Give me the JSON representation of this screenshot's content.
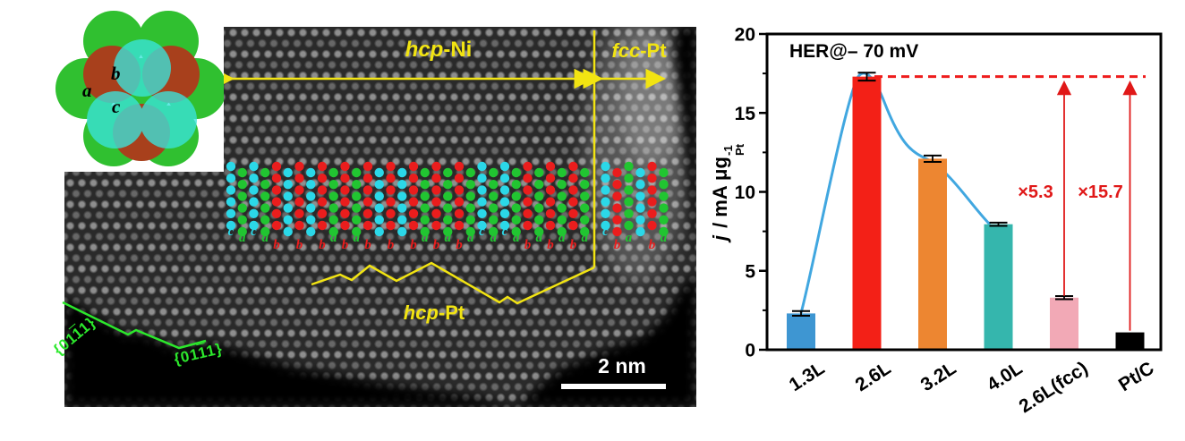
{
  "micrograph": {
    "regions": {
      "left": {
        "italic": "hcp",
        "rest": "-Ni"
      },
      "right": {
        "italic": "fcc",
        "rest": "-Pt"
      },
      "bottom": {
        "italic": "hcp",
        "rest": "-Pt"
      }
    },
    "facets": [
      {
        "pre": "{01",
        "bar": "1",
        "post": "1}"
      },
      {
        "pre": "{01",
        "bar": "1",
        "post": "1}"
      }
    ],
    "scale_bar": "2 nm",
    "annotation_colors": {
      "yellow": "#f2e412",
      "green": "#2ce82c"
    },
    "inset": {
      "site_labels": {
        "a": "a",
        "b": "b",
        "c": "c"
      },
      "layer_colors": {
        "a": "#30c030",
        "b": "#a8401c",
        "c": "#3ae4dc"
      }
    },
    "stacking": {
      "hcp": [
        "c",
        "a",
        "c",
        "a",
        "b",
        "c",
        "b",
        "c",
        "b",
        "a",
        "b",
        "a",
        "b",
        "c",
        "b",
        "c",
        "b",
        "a",
        "b",
        "a",
        "b",
        "a",
        "c",
        "a",
        "c",
        "a",
        "b",
        "a",
        "b",
        "a",
        "b",
        "a"
      ],
      "fcc": [
        "c",
        "b",
        "a",
        "c",
        "b",
        "a"
      ],
      "colors": {
        "a": "#21c531",
        "b": "#ea1d1d",
        "c": "#2bd8e8"
      }
    }
  },
  "chart": {
    "title": "HER@– 70 mV",
    "ylabel": {
      "italic": "j",
      "main": " / mA μg",
      "sub": "Pt",
      "sup": "-1"
    }
  },
  "chart_data": {
    "type": "bar",
    "title": "HER@– 70 mV",
    "ylabel": "j / mA μg_Pt^-1",
    "categories": [
      "1.3L",
      "2.6L",
      "3.2L",
      "4.0L",
      "2.6L(fcc)",
      "Pt/C"
    ],
    "values": [
      2.3,
      17.3,
      12.1,
      7.95,
      3.3,
      1.1
    ],
    "errors": [
      0.15,
      0.25,
      0.2,
      0.1,
      0.1,
      0
    ],
    "bar_colors": [
      "#3e96d2",
      "#f32017",
      "#ed8631",
      "#35b6ad",
      "#f2a9b6",
      "#000000"
    ],
    "ylim": [
      0,
      20
    ],
    "yticks": [
      0,
      5,
      10,
      15,
      20
    ],
    "minor_yticks": [
      2.5,
      7.5,
      12.5,
      17.5
    ],
    "grid": false,
    "legend": "none",
    "trend_curve": {
      "through": [
        "1.3L",
        "2.6L",
        "3.2L",
        "4.0L"
      ],
      "color": "#41a7e0"
    },
    "reference_line": {
      "y": 17.3,
      "style": "dashed",
      "color": "#ee1c1c"
    },
    "annotations": [
      {
        "label": "×5.3",
        "at": "2.6L(fcc)",
        "color": "#e01818"
      },
      {
        "label": "×15.7",
        "at": "Pt/C",
        "color": "#e01818"
      }
    ]
  }
}
